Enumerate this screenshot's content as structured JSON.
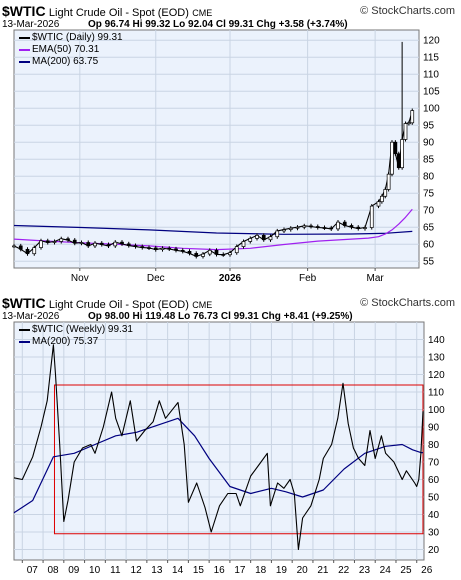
{
  "brand": "© StockCharts.com",
  "chart_data": [
    {
      "type": "line",
      "symbol": "$WTIC",
      "title": "Light Crude Oil - Spot (EOD)",
      "exchange": "CME",
      "date": "13-Mar-2026",
      "stats": "Op 96.74 Hi 99.32 Lo 92.04 Cl 99.31 Chg +3.58 (+3.74%)",
      "legend": [
        {
          "label": "$WTIC (Daily) 99.31",
          "color": "#000000"
        },
        {
          "label": "EMA(50) 70.31",
          "color": "#a020f0"
        },
        {
          "label": "MA(200) 63.75",
          "color": "#000080"
        }
      ],
      "ylim": [
        53,
        123
      ],
      "yticks": [
        55,
        60,
        65,
        70,
        75,
        80,
        85,
        90,
        95,
        100,
        105,
        110,
        115,
        120
      ],
      "xticks": [
        {
          "label": "Nov",
          "x": 19.5
        },
        {
          "label": "Dec",
          "x": 42
        },
        {
          "label": "2026",
          "x": 64,
          "bold": true
        },
        {
          "label": "Feb",
          "x": 87
        },
        {
          "label": "Mar",
          "x": 107
        }
      ],
      "xlim": [
        0,
        120
      ],
      "series": [
        {
          "name": "$WTIC (Daily)",
          "color": "#000000",
          "x": [
            0,
            2,
            4,
            6,
            8,
            10,
            12,
            14,
            16,
            18,
            20,
            22,
            24,
            26,
            28,
            30,
            32,
            34,
            36,
            38,
            40,
            42,
            44,
            46,
            48,
            50,
            52,
            54,
            56,
            58,
            60,
            62,
            64,
            66,
            68,
            70,
            72,
            74,
            76,
            78,
            80,
            82,
            84,
            86,
            88,
            90,
            92,
            94,
            96,
            98,
            100,
            102,
            104,
            106,
            108,
            109,
            110,
            111,
            112,
            113,
            114,
            115,
            116,
            117,
            118
          ],
          "y": [
            59.5,
            58.5,
            57.2,
            59.0,
            61.0,
            60.5,
            60.8,
            61.6,
            61.2,
            60.3,
            60.5,
            59.5,
            60.3,
            59.9,
            59.5,
            60.6,
            60.1,
            59.6,
            59.3,
            59.0,
            58.9,
            58.4,
            58.8,
            58.6,
            58.2,
            57.9,
            57.3,
            56.4,
            57.1,
            58.2,
            57.0,
            56.9,
            57.5,
            59.3,
            60.8,
            61.7,
            62.6,
            61.3,
            62.2,
            63.9,
            64.3,
            64.7,
            65.0,
            65.4,
            65.2,
            64.9,
            64.8,
            64.5,
            66.5,
            65.5,
            65.0,
            64.6,
            64.9,
            71.2,
            72.5,
            74.1,
            76.1,
            80.6,
            90.0,
            86.6,
            82.5,
            90.8,
            95.5,
            95.7,
            99.3
          ]
        },
        {
          "name": "EMA(50)",
          "color": "#a020f0",
          "x": [
            0,
            10,
            20,
            30,
            40,
            50,
            60,
            70,
            80,
            90,
            100,
            105,
            108,
            110,
            112,
            114,
            116,
            118
          ],
          "y": [
            61.5,
            60.9,
            60.4,
            60.0,
            59.5,
            58.8,
            58.4,
            58.8,
            59.9,
            60.9,
            61.5,
            61.8,
            62.2,
            63.0,
            64.2,
            65.9,
            67.9,
            70.3
          ]
        },
        {
          "name": "MA(200)",
          "color": "#000080",
          "x": [
            0,
            20,
            40,
            60,
            80,
            100,
            110,
            118
          ],
          "y": [
            65.5,
            64.9,
            64.2,
            63.3,
            62.9,
            63.0,
            63.2,
            63.75
          ]
        }
      ]
    },
    {
      "type": "line",
      "symbol": "$WTIC",
      "title": "Light Crude Oil - Spot (EOD)",
      "exchange": "CME",
      "date": "13-Mar-2026",
      "stats": "Op 98.00 Hi 119.48 Lo 76.73 Cl 99.31 Chg +8.41 (+9.25%)",
      "legend": [
        {
          "label": "$WTIC (Weekly) 99.31",
          "color": "#000000"
        },
        {
          "label": "MA(200) 75.37",
          "color": "#000080"
        }
      ],
      "ylim": [
        14,
        150
      ],
      "yticks": [
        20,
        30,
        40,
        50,
        60,
        70,
        80,
        90,
        100,
        110,
        120,
        130,
        140
      ],
      "xticks": [
        "07",
        "08",
        "09",
        "10",
        "11",
        "12",
        "13",
        "14",
        "15",
        "16",
        "17",
        "18",
        "19",
        "20",
        "21",
        "22",
        "23",
        "24",
        "25",
        "26"
      ],
      "xlim": [
        2006.6,
        2026.35
      ],
      "annotations": [
        {
          "type": "rectangle",
          "color": "#dd0000",
          "x": [
            2008.55,
            2026.3
          ],
          "y": [
            29,
            114
          ]
        }
      ],
      "series": [
        {
          "name": "$WTIC (Weekly)",
          "color": "#000000",
          "x": [
            2006.6,
            2007.0,
            2007.5,
            2007.9,
            2008.2,
            2008.5,
            2008.6,
            2008.8,
            2009.0,
            2009.2,
            2009.5,
            2009.9,
            2010.3,
            2010.5,
            2010.9,
            2011.3,
            2011.5,
            2011.8,
            2012.2,
            2012.5,
            2012.9,
            2013.3,
            2013.6,
            2013.9,
            2014.3,
            2014.5,
            2014.8,
            2015.0,
            2015.4,
            2015.8,
            2016.1,
            2016.5,
            2016.9,
            2017.3,
            2017.5,
            2018.0,
            2018.5,
            2018.8,
            2018.95,
            2019.3,
            2019.6,
            2019.9,
            2020.1,
            2020.3,
            2020.5,
            2020.9,
            2021.3,
            2021.5,
            2021.9,
            2022.2,
            2022.45,
            2022.7,
            2022.95,
            2023.2,
            2023.5,
            2023.75,
            2024.0,
            2024.3,
            2024.5,
            2024.9,
            2025.3,
            2025.5,
            2025.9,
            2026.0,
            2026.1,
            2026.2,
            2026.3
          ],
          "y": [
            61,
            60,
            73,
            90,
            105,
            137,
            120,
            80,
            36,
            48,
            70,
            78,
            80,
            75,
            90,
            110,
            95,
            85,
            105,
            82,
            88,
            93,
            105,
            95,
            101,
            104,
            80,
            47,
            58,
            44,
            30,
            45,
            52,
            52,
            45,
            62,
            70,
            75,
            45,
            58,
            55,
            60,
            52,
            20,
            38,
            45,
            60,
            72,
            80,
            95,
            115,
            92,
            78,
            72,
            68,
            88,
            72,
            85,
            75,
            70,
            60,
            65,
            58,
            56,
            60,
            75,
            99
          ]
        },
        {
          "name": "MA(200)",
          "color": "#000080",
          "x": [
            2006.6,
            2007.5,
            2008.5,
            2009.5,
            2010.5,
            2011.5,
            2012.5,
            2013.5,
            2014.5,
            2015.3,
            2016.0,
            2017.0,
            2018.0,
            2019.0,
            2019.7,
            2020.5,
            2021.5,
            2022.5,
            2023.5,
            2024.5,
            2025.3,
            2025.8,
            2026.2,
            2026.3
          ],
          "y": [
            41,
            48,
            73,
            75,
            80,
            85,
            87,
            91,
            95,
            85,
            72,
            56,
            52,
            55,
            53,
            50,
            54,
            66,
            75,
            79,
            80,
            77,
            75.37,
            75.37
          ]
        }
      ]
    }
  ]
}
